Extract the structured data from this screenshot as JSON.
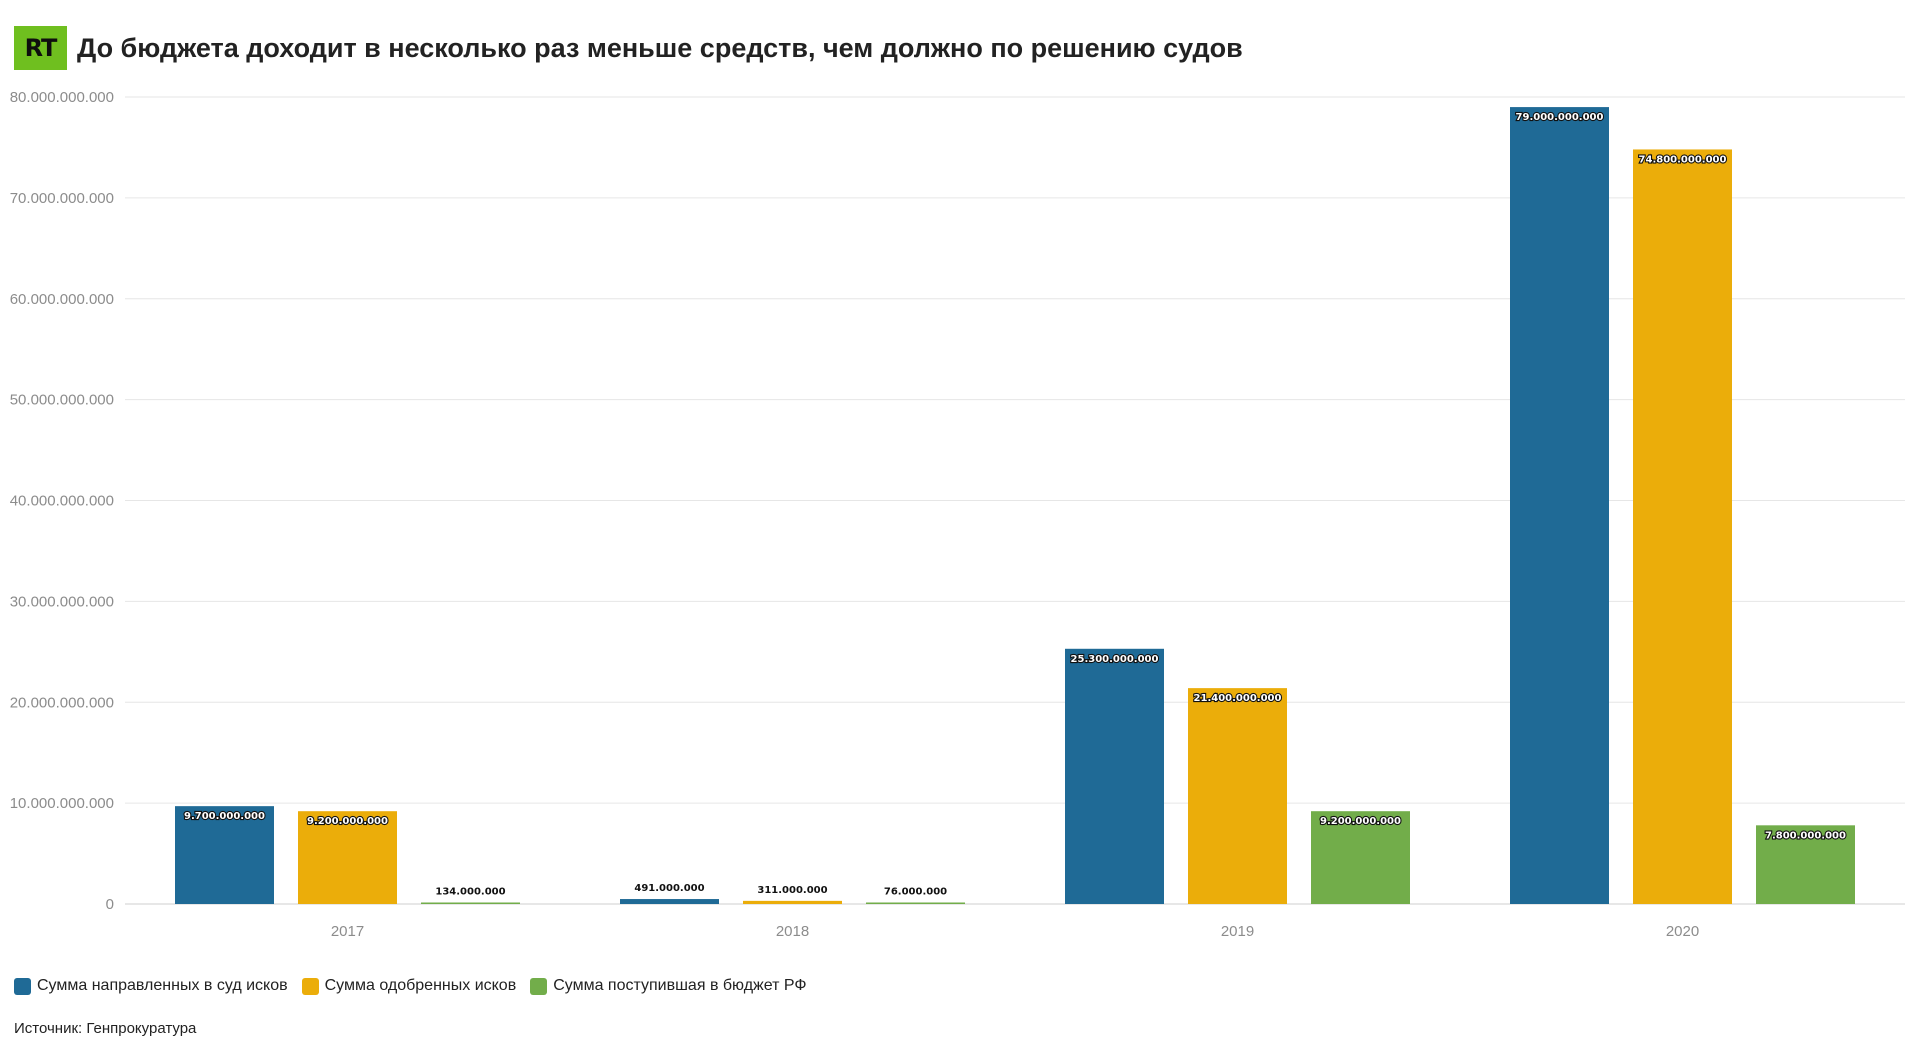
{
  "header": {
    "logo_text": "RT",
    "title": "До бюджета доходит в несколько раз меньше средств, чем должно по решению судов"
  },
  "colors": {
    "series1": "#1f6a96",
    "series2": "#ebad0a",
    "series3": "#72ad4a",
    "logo_bg": "#6fbf1f",
    "grid": "#e6e6e6",
    "axis_text": "#8c8c8c"
  },
  "chart_data": {
    "type": "bar",
    "title": "До бюджета доходит в несколько раз меньше средств, чем должно по решению судов",
    "categories": [
      "2017",
      "2018",
      "2019",
      "2020"
    ],
    "series": [
      {
        "name": "Сумма направленных в суд исков",
        "values": [
          9700000000,
          491000000,
          25300000000,
          79000000000
        ],
        "labels": [
          "9.700.000.000",
          "491.000.000",
          "25.300.000.000",
          "79.000.000.000"
        ]
      },
      {
        "name": "Сумма одобренных исков",
        "values": [
          9200000000,
          311000000,
          21400000000,
          74800000000
        ],
        "labels": [
          "9.200.000.000",
          "311.000.000",
          "21.400.000.000",
          "74.800.000.000"
        ]
      },
      {
        "name": "Сумма поступившая в бюджет РФ",
        "values": [
          134000000,
          76000000,
          9200000000,
          7800000000
        ],
        "labels": [
          "134.000.000",
          "76.000.000",
          "9.200.000.000",
          "7.800.000.000"
        ]
      }
    ],
    "ylim": [
      0,
      80000000000
    ],
    "yticks": [
      0,
      10000000000,
      20000000000,
      30000000000,
      40000000000,
      50000000000,
      60000000000,
      70000000000,
      80000000000
    ],
    "ytick_labels": [
      "0",
      "10.000.000.000",
      "20.000.000.000",
      "30.000.000.000",
      "40.000.000.000",
      "50.000.000.000",
      "60.000.000.000",
      "70.000.000.000",
      "80.000.000.000"
    ],
    "grid": true,
    "legend": "bottom-left"
  },
  "legend": {
    "items": [
      "Сумма направленных в суд исков",
      "Сумма одобренных исков",
      "Сумма поступившая в бюджет РФ"
    ]
  },
  "source": "Источник: Генпрокуратура"
}
